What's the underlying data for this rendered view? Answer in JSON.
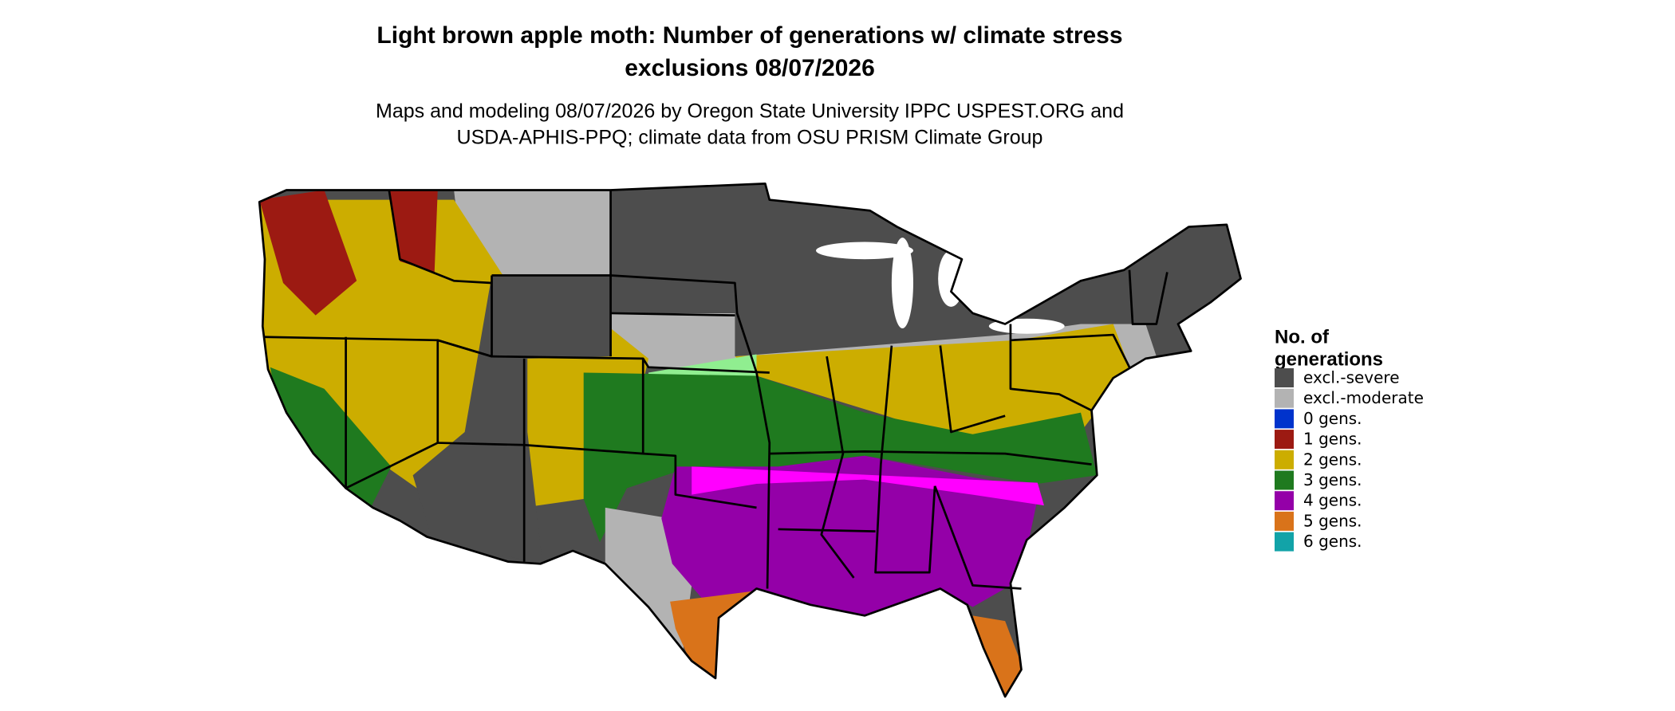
{
  "title": [
    "Light brown apple moth: Number of generations w/ climate stress",
    "exclusions 08/07/2026"
  ],
  "subtitle": [
    "Maps and modeling 08/07/2026 by Oregon State University IPPC USPEST.ORG and",
    "USDA-APHIS-PPQ; climate data from OSU PRISM Climate Group"
  ],
  "legend": {
    "title": [
      "No. of",
      "generations"
    ],
    "items": [
      {
        "label": "excl.-severe",
        "color": "#4d4d4d"
      },
      {
        "label": "excl.-moderate",
        "color": "#b3b3b3"
      },
      {
        "label": "0 gens.",
        "color": "#0033cc"
      },
      {
        "label": "1 gens.",
        "color": "#9c1a12"
      },
      {
        "label": "2 gens.",
        "color": "#ccad00"
      },
      {
        "label": "3 gens.",
        "color": "#1f7a1f"
      },
      {
        "label": "4 gens.",
        "color": "#9400a8"
      },
      {
        "label": "5 gens.",
        "color": "#d9731a"
      },
      {
        "label": "6 gens.",
        "color": "#12a3a8"
      }
    ]
  }
}
